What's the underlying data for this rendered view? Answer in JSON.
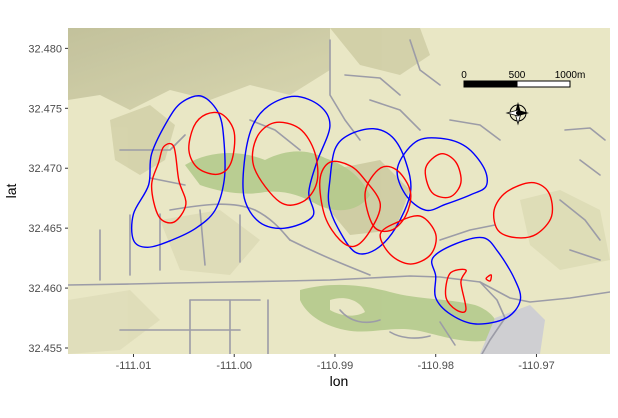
{
  "chart_data": {
    "type": "map",
    "xlabel": "lon",
    "ylabel": "lat",
    "xlim": [
      -111.0165,
      -110.9627
    ],
    "ylim": [
      32.4545,
      32.4817
    ],
    "x_ticks": [
      -111.01,
      -111.0,
      -110.99,
      -110.98,
      -110.97
    ],
    "x_tick_labels": [
      "-111.01",
      "-111.00",
      "-110.99",
      "-110.98",
      "-110.97"
    ],
    "y_ticks": [
      32.455,
      32.46,
      32.465,
      32.47,
      32.475,
      32.48
    ],
    "y_tick_labels": [
      "32.455",
      "32.460",
      "32.465",
      "32.470",
      "32.475",
      "32.480"
    ],
    "scale_bar": {
      "labels": [
        "0",
        "500",
        "1000m"
      ]
    },
    "colors": {
      "panel_bg": "#e9e7c5",
      "terrain": "#d8d6ae",
      "hillshade": "#a6a48a",
      "vegetation": "#b7cc8f",
      "roads": "#9c9ca7",
      "urban": "#cfcfd2",
      "series_blue": "#0000ff",
      "series_red": "#ff0000"
    },
    "series": [
      {
        "color": "blue",
        "contours": [
          [
            [
              -111.0085,
              32.4686
            ],
            [
              -111.0082,
              32.4712
            ],
            [
              -111.0066,
              32.474
            ],
            [
              -111.0052,
              32.4755
            ],
            [
              -111.0032,
              32.476
            ],
            [
              -111.0015,
              32.4745
            ],
            [
              -111.001,
              32.472
            ],
            [
              -111.001,
              32.469
            ],
            [
              -111.0019,
              32.4665
            ],
            [
              -111.0038,
              32.465
            ],
            [
              -111.0062,
              32.464
            ],
            [
              -111.0086,
              32.4634
            ],
            [
              -111.01,
              32.464
            ],
            [
              -111.01,
              32.4662
            ]
          ],
          [
            [
              -110.999,
              32.4675
            ],
            [
              -110.999,
              32.4705
            ],
            [
              -110.9982,
              32.4735
            ],
            [
              -110.9966,
              32.4752
            ],
            [
              -110.994,
              32.476
            ],
            [
              -110.9915,
              32.4752
            ],
            [
              -110.9905,
              32.4735
            ],
            [
              -110.9918,
              32.4705
            ],
            [
              -110.9926,
              32.468
            ],
            [
              -110.9922,
              32.466
            ],
            [
              -110.995,
              32.465
            ],
            [
              -110.9975,
              32.4655
            ]
          ],
          [
            [
              -110.9905,
              32.469
            ],
            [
              -110.99,
              32.4716
            ],
            [
              -110.9886,
              32.4728
            ],
            [
              -110.9862,
              32.4733
            ],
            [
              -110.9843,
              32.4726
            ],
            [
              -110.983,
              32.4706
            ],
            [
              -110.9825,
              32.468
            ],
            [
              -110.984,
              32.465
            ],
            [
              -110.986,
              32.4632
            ],
            [
              -110.988,
              32.463
            ],
            [
              -110.9897,
              32.465
            ],
            [
              -110.9906,
              32.467
            ]
          ],
          [
            [
              -110.9838,
              32.47
            ],
            [
              -110.982,
              32.4722
            ],
            [
              -110.9795,
              32.4725
            ],
            [
              -110.977,
              32.4718
            ],
            [
              -110.9752,
              32.47
            ],
            [
              -110.975,
              32.4685
            ],
            [
              -110.9765,
              32.4678
            ],
            [
              -110.979,
              32.467
            ],
            [
              -110.981,
              32.4665
            ],
            [
              -110.983,
              32.4678
            ]
          ],
          [
            [
              -110.98,
              32.461
            ],
            [
              -110.9803,
              32.4625
            ],
            [
              -110.978,
              32.4637
            ],
            [
              -110.9753,
              32.4642
            ],
            [
              -110.9738,
              32.463
            ],
            [
              -110.9722,
              32.4608
            ],
            [
              -110.9716,
              32.459
            ],
            [
              -110.973,
              32.4575
            ],
            [
              -110.976,
              32.457
            ],
            [
              -110.9785,
              32.4578
            ],
            [
              -110.98,
              32.4592
            ]
          ]
        ]
      },
      {
        "color": "red",
        "contours": [
          [
            [
              -111.0075,
              32.4705
            ],
            [
              -111.007,
              32.4718
            ],
            [
              -111.006,
              32.4718
            ],
            [
              -111.0055,
              32.469
            ],
            [
              -111.0048,
              32.467
            ],
            [
              -111.006,
              32.4655
            ],
            [
              -111.0075,
              32.466
            ],
            [
              -111.0082,
              32.4685
            ]
          ],
          [
            [
              -111.0045,
              32.4715
            ],
            [
              -111.004,
              32.4735
            ],
            [
              -111.0028,
              32.4745
            ],
            [
              -111.0012,
              32.4745
            ],
            [
              -111.0,
              32.473
            ],
            [
              -111.0003,
              32.4705
            ],
            [
              -111.0016,
              32.4695
            ],
            [
              -111.0036,
              32.47
            ]
          ],
          [
            [
              -110.998,
              32.47
            ],
            [
              -110.9978,
              32.4725
            ],
            [
              -110.996,
              32.4738
            ],
            [
              -110.9935,
              32.4733
            ],
            [
              -110.992,
              32.4713
            ],
            [
              -110.9918,
              32.4688
            ],
            [
              -110.9932,
              32.4672
            ],
            [
              -110.9955,
              32.4672
            ]
          ],
          [
            [
              -110.9915,
              32.469
            ],
            [
              -110.9905,
              32.4705
            ],
            [
              -110.9885,
              32.4702
            ],
            [
              -110.987,
              32.469
            ],
            [
              -110.9855,
              32.467
            ],
            [
              -110.9865,
              32.4648
            ],
            [
              -110.988,
              32.4635
            ],
            [
              -110.9895,
              32.464
            ],
            [
              -110.991,
              32.466
            ]
          ],
          [
            [
              -110.987,
              32.468
            ],
            [
              -110.9855,
              32.47
            ],
            [
              -110.9838,
              32.4698
            ],
            [
              -110.9825,
              32.468
            ],
            [
              -110.983,
              32.466
            ],
            [
              -110.9845,
              32.4648
            ],
            [
              -110.9862,
              32.4652
            ]
          ],
          [
            [
              -110.9855,
              32.4645
            ],
            [
              -110.9838,
              32.4655
            ],
            [
              -110.9815,
              32.466
            ],
            [
              -110.98,
              32.4645
            ],
            [
              -110.9805,
              32.4628
            ],
            [
              -110.9825,
              32.462
            ],
            [
              -110.9845,
              32.4628
            ]
          ],
          [
            [
              -110.981,
              32.47
            ],
            [
              -110.9795,
              32.4712
            ],
            [
              -110.978,
              32.4705
            ],
            [
              -110.9775,
              32.4688
            ],
            [
              -110.9786,
              32.4676
            ],
            [
              -110.9804,
              32.468
            ]
          ],
          [
            [
              -110.9685,
              32.466
            ],
            [
              -110.9688,
              32.468
            ],
            [
              -110.9705,
              32.4688
            ],
            [
              -110.973,
              32.468
            ],
            [
              -110.9742,
              32.4665
            ],
            [
              -110.9738,
              32.4648
            ],
            [
              -110.972,
              32.4642
            ],
            [
              -110.97,
              32.4645
            ]
          ],
          [
            [
              -110.9775,
              32.4605
            ],
            [
              -110.977,
              32.4615
            ],
            [
              -110.9786,
              32.4612
            ],
            [
              -110.979,
              32.4593
            ],
            [
              -110.978,
              32.4582
            ],
            [
              -110.977,
              32.4582
            ]
          ],
          [
            [
              -110.975,
              32.4608
            ],
            [
              -110.9745,
              32.4611
            ],
            [
              -110.9746,
              32.4606
            ]
          ]
        ]
      }
    ]
  }
}
